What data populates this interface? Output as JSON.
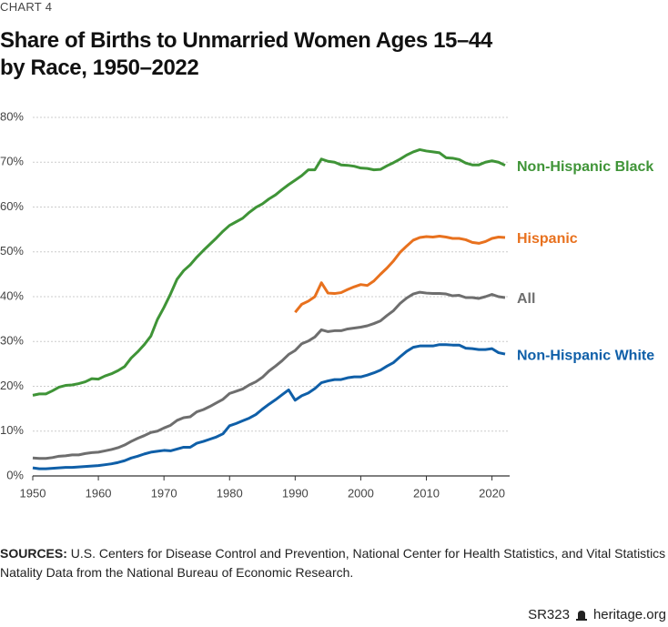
{
  "chart_data": {
    "type": "line",
    "kicker": "CHART 4",
    "title": "Share of Births to Unmarried Women Ages 15–44\nby Race, 1950–2022",
    "x": [
      1950,
      1951,
      1952,
      1953,
      1954,
      1955,
      1956,
      1957,
      1958,
      1959,
      1960,
      1961,
      1962,
      1963,
      1964,
      1965,
      1966,
      1967,
      1968,
      1969,
      1970,
      1971,
      1972,
      1973,
      1974,
      1975,
      1976,
      1977,
      1978,
      1979,
      1980,
      1981,
      1982,
      1983,
      1984,
      1985,
      1986,
      1987,
      1988,
      1989,
      1990,
      1991,
      1992,
      1993,
      1994,
      1995,
      1996,
      1997,
      1998,
      1999,
      2000,
      2001,
      2002,
      2003,
      2004,
      2005,
      2006,
      2007,
      2008,
      2009,
      2010,
      2011,
      2012,
      2013,
      2014,
      2015,
      2016,
      2017,
      2018,
      2019,
      2020,
      2021,
      2022
    ],
    "series": [
      {
        "name": "Non-Hispanic Black",
        "color": "#3f9437",
        "values": [
          18.0,
          18.3,
          18.3,
          19.0,
          19.8,
          20.2,
          20.3,
          20.6,
          21.0,
          21.7,
          21.6,
          22.3,
          22.8,
          23.5,
          24.4,
          26.3,
          27.7,
          29.3,
          31.2,
          34.9,
          37.6,
          40.6,
          43.9,
          45.8,
          47.1,
          48.8,
          50.3,
          51.7,
          53.1,
          54.6,
          55.9,
          56.7,
          57.5,
          58.8,
          59.9,
          60.7,
          61.8,
          62.7,
          63.9,
          65.0,
          66.0,
          67.0,
          68.3,
          68.3,
          70.7,
          70.2,
          70.0,
          69.4,
          69.3,
          69.1,
          68.7,
          68.6,
          68.3,
          68.4,
          69.2,
          69.9,
          70.7,
          71.6,
          72.3,
          72.8,
          72.5,
          72.3,
          72.1,
          71.0,
          70.9,
          70.6,
          69.8,
          69.4,
          69.4,
          70.0,
          70.3,
          70.0,
          69.3
        ]
      },
      {
        "name": "Hispanic",
        "color": "#e8711e",
        "values": [
          null,
          null,
          null,
          null,
          null,
          null,
          null,
          null,
          null,
          null,
          null,
          null,
          null,
          null,
          null,
          null,
          null,
          null,
          null,
          null,
          null,
          null,
          null,
          null,
          null,
          null,
          null,
          null,
          null,
          null,
          null,
          null,
          null,
          null,
          null,
          null,
          null,
          null,
          null,
          null,
          36.5,
          38.3,
          39.0,
          40.0,
          43.1,
          40.8,
          40.7,
          40.9,
          41.6,
          42.2,
          42.7,
          42.5,
          43.5,
          45.0,
          46.4,
          48.0,
          49.9,
          51.3,
          52.6,
          53.2,
          53.4,
          53.3,
          53.5,
          53.3,
          53.0,
          53.0,
          52.7,
          52.1,
          51.9,
          52.3,
          53.0,
          53.3,
          53.2
        ]
      },
      {
        "name": "All",
        "color": "#6e6e6e",
        "values": [
          4.0,
          3.9,
          3.9,
          4.1,
          4.4,
          4.5,
          4.7,
          4.7,
          5.0,
          5.2,
          5.3,
          5.6,
          5.9,
          6.3,
          6.9,
          7.7,
          8.4,
          9.0,
          9.7,
          10.0,
          10.7,
          11.3,
          12.4,
          13.0,
          13.2,
          14.3,
          14.8,
          15.5,
          16.3,
          17.1,
          18.4,
          18.9,
          19.4,
          20.3,
          21.0,
          22.0,
          23.4,
          24.5,
          25.7,
          27.1,
          28.0,
          29.5,
          30.1,
          31.0,
          32.6,
          32.2,
          32.4,
          32.4,
          32.8,
          33.0,
          33.2,
          33.5,
          34.0,
          34.6,
          35.8,
          36.9,
          38.5,
          39.7,
          40.6,
          41.0,
          40.8,
          40.7,
          40.7,
          40.6,
          40.2,
          40.3,
          39.8,
          39.8,
          39.6,
          40.0,
          40.5,
          40.0,
          39.8
        ]
      },
      {
        "name": "Non-Hispanic White",
        "color": "#0f5fa8",
        "values": [
          1.8,
          1.6,
          1.6,
          1.7,
          1.8,
          1.9,
          1.9,
          2.0,
          2.1,
          2.2,
          2.3,
          2.5,
          2.7,
          3.0,
          3.4,
          4.0,
          4.4,
          4.9,
          5.3,
          5.5,
          5.7,
          5.6,
          6.0,
          6.4,
          6.4,
          7.3,
          7.7,
          8.2,
          8.7,
          9.4,
          11.2,
          11.7,
          12.3,
          12.9,
          13.7,
          14.9,
          16.0,
          17.0,
          18.1,
          19.2,
          16.9,
          17.9,
          18.5,
          19.5,
          20.8,
          21.2,
          21.5,
          21.5,
          21.9,
          22.1,
          22.1,
          22.5,
          23.0,
          23.6,
          24.5,
          25.3,
          26.6,
          27.8,
          28.7,
          29.0,
          29.0,
          29.0,
          29.3,
          29.3,
          29.2,
          29.2,
          28.5,
          28.4,
          28.2,
          28.2,
          28.4,
          27.5,
          27.2
        ]
      }
    ],
    "xlim": [
      1950,
      2022
    ],
    "xticks": [
      1950,
      1960,
      1970,
      1980,
      1990,
      2000,
      2010,
      2020
    ],
    "ylim": [
      0,
      80
    ],
    "yticks": [
      {
        "value": 0,
        "label": "0%"
      },
      {
        "value": 10,
        "label": "10%"
      },
      {
        "value": 20,
        "label": "20%"
      },
      {
        "value": 30,
        "label": "30%"
      },
      {
        "value": 40,
        "label": "40%"
      },
      {
        "value": 50,
        "label": "50%"
      },
      {
        "value": 60,
        "label": "60%"
      },
      {
        "value": 70,
        "label": "70%"
      },
      {
        "value": 80,
        "label": "80%"
      }
    ],
    "grid": true,
    "sources_label": "SOURCES:",
    "sources_text": "U.S. Centers for Disease Control and Prevention, National Center for Health Statistics, and Vital Statistics Natality Data from the National Bureau of Economic Research.",
    "report_id": "SR323",
    "site": "heritage.org"
  }
}
